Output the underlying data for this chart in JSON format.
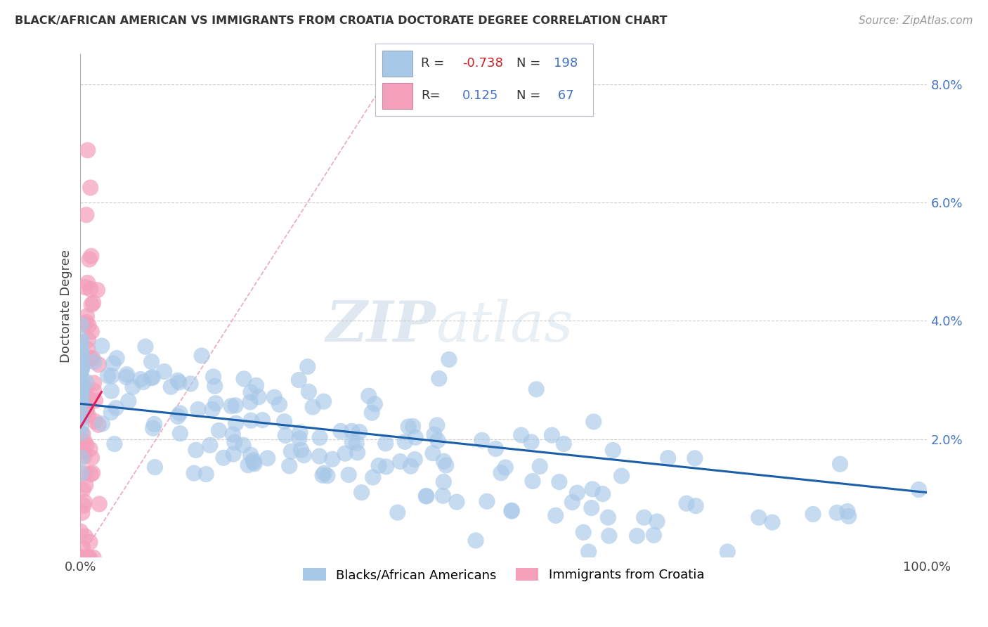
{
  "title": "BLACK/AFRICAN AMERICAN VS IMMIGRANTS FROM CROATIA DOCTORATE DEGREE CORRELATION CHART",
  "source": "Source: ZipAtlas.com",
  "ylabel": "Doctorate Degree",
  "xlim": [
    0.0,
    1.0
  ],
  "ylim": [
    0.0,
    0.085
  ],
  "yticks": [
    0.0,
    0.02,
    0.04,
    0.06,
    0.08
  ],
  "ytick_labels": [
    "",
    "2.0%",
    "4.0%",
    "6.0%",
    "8.0%"
  ],
  "blue_R": -0.738,
  "blue_N": 198,
  "pink_R": 0.125,
  "pink_N": 67,
  "blue_color": "#a8c8e8",
  "pink_color": "#f4a0bb",
  "blue_line_color": "#1a5fa8",
  "pink_line_color": "#e02060",
  "diagonal_color": "#e8a0b8",
  "legend_blue_label": "Blacks/African Americans",
  "legend_pink_label": "Immigrants from Croatia"
}
